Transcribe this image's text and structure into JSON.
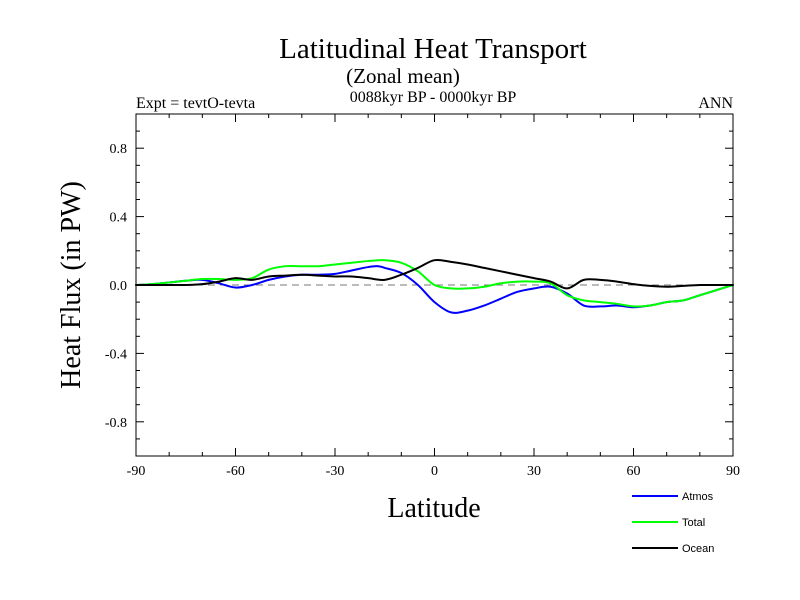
{
  "chart_data": {
    "type": "line",
    "title": "Latitudinal Heat Transport",
    "subtitle": "(Zonal mean)",
    "left_note": "Expt = tevtO-tevta",
    "center_note": "0088kyr BP - 0000kyr BP",
    "right_note": "ANN",
    "xlabel": "Latitude",
    "ylabel": "Heat Flux (in PW)",
    "xlim": [
      -90,
      90
    ],
    "ylim": [
      -1.0,
      1.0
    ],
    "xticks": [
      -90,
      -60,
      -30,
      0,
      30,
      60,
      90
    ],
    "xtick_labels": [
      "-90",
      "-60",
      "-30",
      "0",
      "30",
      "60",
      "90"
    ],
    "yticks": [
      -0.8,
      -0.4,
      0.0,
      0.4,
      0.8
    ],
    "ytick_labels": [
      "-0.8",
      "-0.4",
      "0.0",
      "0.4",
      "0.8"
    ],
    "zero_line": "dashed",
    "legend_position": "bottom-right",
    "grid": false,
    "series": [
      {
        "name": "Atmos",
        "color": "#0000ff",
        "x": [
          -90,
          -85,
          -80,
          -75,
          -70,
          -65,
          -60,
          -55,
          -50,
          -45,
          -40,
          -35,
          -30,
          -25,
          -20,
          -17,
          -15,
          -10,
          -5,
          0,
          5,
          10,
          15,
          20,
          25,
          30,
          35,
          40,
          45,
          50,
          55,
          60,
          65,
          70,
          75,
          80,
          85,
          90
        ],
        "y": [
          0.0,
          0.005,
          0.015,
          0.025,
          0.03,
          0.01,
          -0.015,
          0.0,
          0.03,
          0.05,
          0.06,
          0.06,
          0.065,
          0.085,
          0.105,
          0.11,
          0.1,
          0.07,
          0.0,
          -0.1,
          -0.16,
          -0.15,
          -0.12,
          -0.08,
          -0.04,
          -0.02,
          -0.01,
          -0.05,
          -0.12,
          -0.125,
          -0.12,
          -0.13,
          -0.12,
          -0.1,
          -0.09,
          -0.06,
          -0.03,
          0.0
        ]
      },
      {
        "name": "Total",
        "color": "#00ff00",
        "x": [
          -90,
          -85,
          -80,
          -75,
          -70,
          -65,
          -60,
          -55,
          -50,
          -45,
          -40,
          -35,
          -30,
          -25,
          -20,
          -15,
          -10,
          -5,
          0,
          5,
          10,
          15,
          20,
          25,
          30,
          35,
          40,
          45,
          50,
          55,
          60,
          65,
          70,
          75,
          80,
          85,
          90
        ],
        "y": [
          0.0,
          0.005,
          0.015,
          0.025,
          0.035,
          0.035,
          0.03,
          0.04,
          0.09,
          0.11,
          0.11,
          0.11,
          0.12,
          0.13,
          0.14,
          0.145,
          0.13,
          0.08,
          0.0,
          -0.02,
          -0.02,
          -0.01,
          0.01,
          0.02,
          0.02,
          0.01,
          -0.06,
          -0.09,
          -0.1,
          -0.11,
          -0.125,
          -0.12,
          -0.1,
          -0.09,
          -0.06,
          -0.03,
          0.0
        ]
      },
      {
        "name": "Ocean",
        "color": "#000000",
        "x": [
          -90,
          -85,
          -80,
          -75,
          -70,
          -65,
          -60,
          -55,
          -50,
          -45,
          -40,
          -35,
          -30,
          -25,
          -20,
          -15,
          -10,
          -5,
          0,
          5,
          10,
          15,
          20,
          25,
          30,
          35,
          40,
          45,
          50,
          55,
          60,
          65,
          70,
          75,
          80,
          85,
          90
        ],
        "y": [
          0.0,
          0.0,
          0.0,
          0.0,
          0.005,
          0.02,
          0.04,
          0.03,
          0.05,
          0.055,
          0.06,
          0.055,
          0.05,
          0.05,
          0.04,
          0.03,
          0.06,
          0.1,
          0.145,
          0.135,
          0.12,
          0.1,
          0.08,
          0.06,
          0.04,
          0.02,
          -0.02,
          0.03,
          0.03,
          0.02,
          0.005,
          -0.005,
          -0.01,
          -0.005,
          0.0,
          0.0,
          0.0
        ]
      }
    ]
  }
}
